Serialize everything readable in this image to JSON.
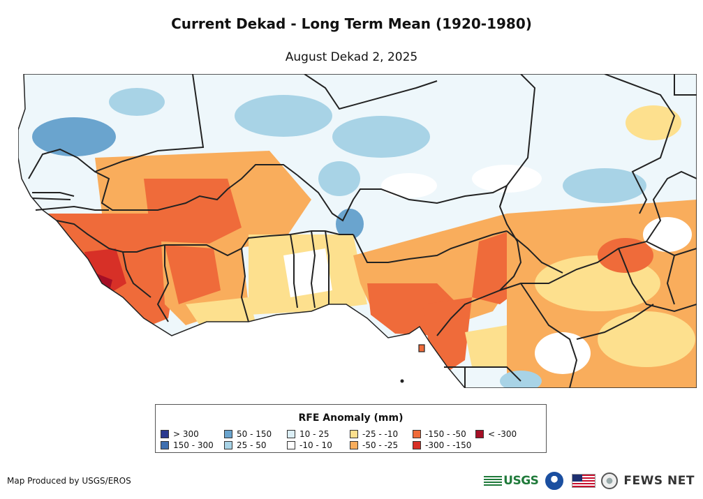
{
  "header": {
    "title": "Current Dekad - Long Term Mean (1920-1980)",
    "subtitle": "August Dekad 2, 2025"
  },
  "legend": {
    "title": "RFE Anomaly (mm)",
    "items": [
      {
        "label": "> 300",
        "color": "#2b3a8f"
      },
      {
        "label": "150 - 300",
        "color": "#3f6faf"
      },
      {
        "label": "50 - 150",
        "color": "#6aa4ce"
      },
      {
        "label": "25 - 50",
        "color": "#a8d3e6"
      },
      {
        "label": "10 - 25",
        "color": "#dceff6"
      },
      {
        "label": "-10 - 10",
        "color": "#ffffff"
      },
      {
        "label": "-25 - -10",
        "color": "#fde08e"
      },
      {
        "label": "-50 - -25",
        "color": "#f9ad5c"
      },
      {
        "label": "-150 - -50",
        "color": "#ef6b3a"
      },
      {
        "label": "-300 - -150",
        "color": "#d73027"
      },
      {
        "label": "< -300",
        "color": "#a50f26"
      }
    ]
  },
  "footer": {
    "credit": "Map Produced by USGS/EROS",
    "usgs": "USGS",
    "fews": "FEWS NET"
  },
  "colors": {
    "land_white": "#ffffff",
    "border": "#222222"
  },
  "icons": [
    "usgs-logo-icon",
    "noaa-logo-icon",
    "us-flag-icon",
    "state-department-seal-icon"
  ]
}
